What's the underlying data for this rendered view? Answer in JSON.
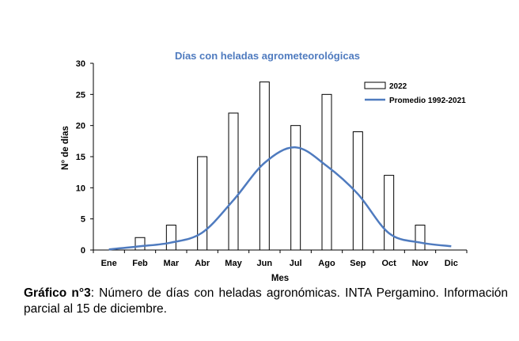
{
  "chart_data": {
    "type": "bar",
    "title": "Días con heladas agrometeorológicas",
    "xlabel": "Mes",
    "ylabel": "N° de días",
    "categories": [
      "Ene",
      "Feb",
      "Mar",
      "Abr",
      "May",
      "Jun",
      "Jul",
      "Ago",
      "Sep",
      "Oct",
      "Nov",
      "Dic"
    ],
    "ylim": [
      0,
      30
    ],
    "yticks": [
      0,
      5,
      10,
      15,
      20,
      25,
      30
    ],
    "grid": false,
    "legend_position": "top-right",
    "series": [
      {
        "name": "2022",
        "type": "bar",
        "values": [
          0,
          2,
          4,
          15,
          22,
          27,
          20,
          25,
          19,
          12,
          4,
          0
        ],
        "fill": "#ffffff",
        "stroke": "#000000"
      },
      {
        "name": "Promedio 1992-2021",
        "type": "line",
        "smooth": true,
        "values": [
          0.1,
          0.6,
          1.2,
          2.8,
          8.0,
          14.0,
          16.5,
          13.5,
          9.0,
          2.7,
          1.2,
          0.6
        ],
        "color": "#4f7bbf"
      }
    ],
    "title_color": "#4f7bbf"
  },
  "caption": {
    "label": "Gráfico n°3",
    "text": ": Número de días con heladas agronómicas. INTA Pergamino. Información parcial al 15 de diciembre."
  }
}
